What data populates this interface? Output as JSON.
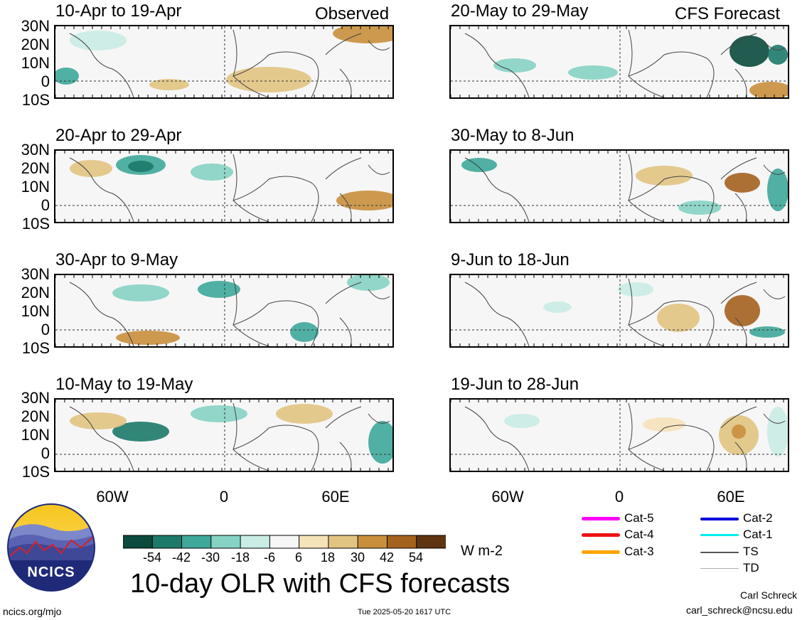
{
  "header": {
    "observed_label": "Observed",
    "forecast_label": "CFS Forecast"
  },
  "panels": [
    {
      "col": 0,
      "row": 0,
      "title": "10-Apr to 19-Apr"
    },
    {
      "col": 0,
      "row": 1,
      "title": "20-Apr to 29-Apr"
    },
    {
      "col": 0,
      "row": 2,
      "title": "30-Apr to 9-May"
    },
    {
      "col": 0,
      "row": 3,
      "title": "10-May to 19-May"
    },
    {
      "col": 1,
      "row": 0,
      "title": "20-May to 29-May"
    },
    {
      "col": 1,
      "row": 1,
      "title": "30-May to 8-Jun"
    },
    {
      "col": 1,
      "row": 2,
      "title": "9-Jun to 18-Jun"
    },
    {
      "col": 1,
      "row": 3,
      "title": "19-Jun to 28-Jun"
    }
  ],
  "axes": {
    "lat_labels": [
      "30N",
      "20N",
      "10N",
      "0",
      "10S"
    ],
    "lon_labels": [
      "60W",
      "0",
      "60E"
    ]
  },
  "colorbar": {
    "ticks": [
      "-54",
      "-42",
      "-30",
      "-18",
      "-6",
      "6",
      "18",
      "30",
      "42",
      "54"
    ],
    "colors": [
      "#0b4a3d",
      "#1c7a6a",
      "#3ea89a",
      "#86d3c4",
      "#c9ece4",
      "#f6f6f6",
      "#f5e2b9",
      "#e2c482",
      "#c98f3d",
      "#a5621f",
      "#5e3510"
    ],
    "units": "W m-2"
  },
  "legend": {
    "items": [
      {
        "label": "Cat-5",
        "color": "#ff00ff"
      },
      {
        "label": "Cat-4",
        "color": "#ee1111"
      },
      {
        "label": "Cat-3",
        "color": "#ffa500"
      },
      {
        "label": "Cat-2",
        "color": "#0000dd"
      },
      {
        "label": "Cat-1",
        "color": "#00eeee"
      },
      {
        "label": "TS",
        "color": "#555555"
      },
      {
        "label": "TD",
        "color": "#aaaaaa"
      }
    ]
  },
  "title": "10-day OLR with CFS forecasts",
  "logo_text": "NCICS",
  "footer": {
    "site": "ncics.org/mjo",
    "timestamp": "Tue 2025-05-20 1617 UTC",
    "author": "Carl Schreck",
    "email": "carl_schreck@ncsu.edu"
  }
}
